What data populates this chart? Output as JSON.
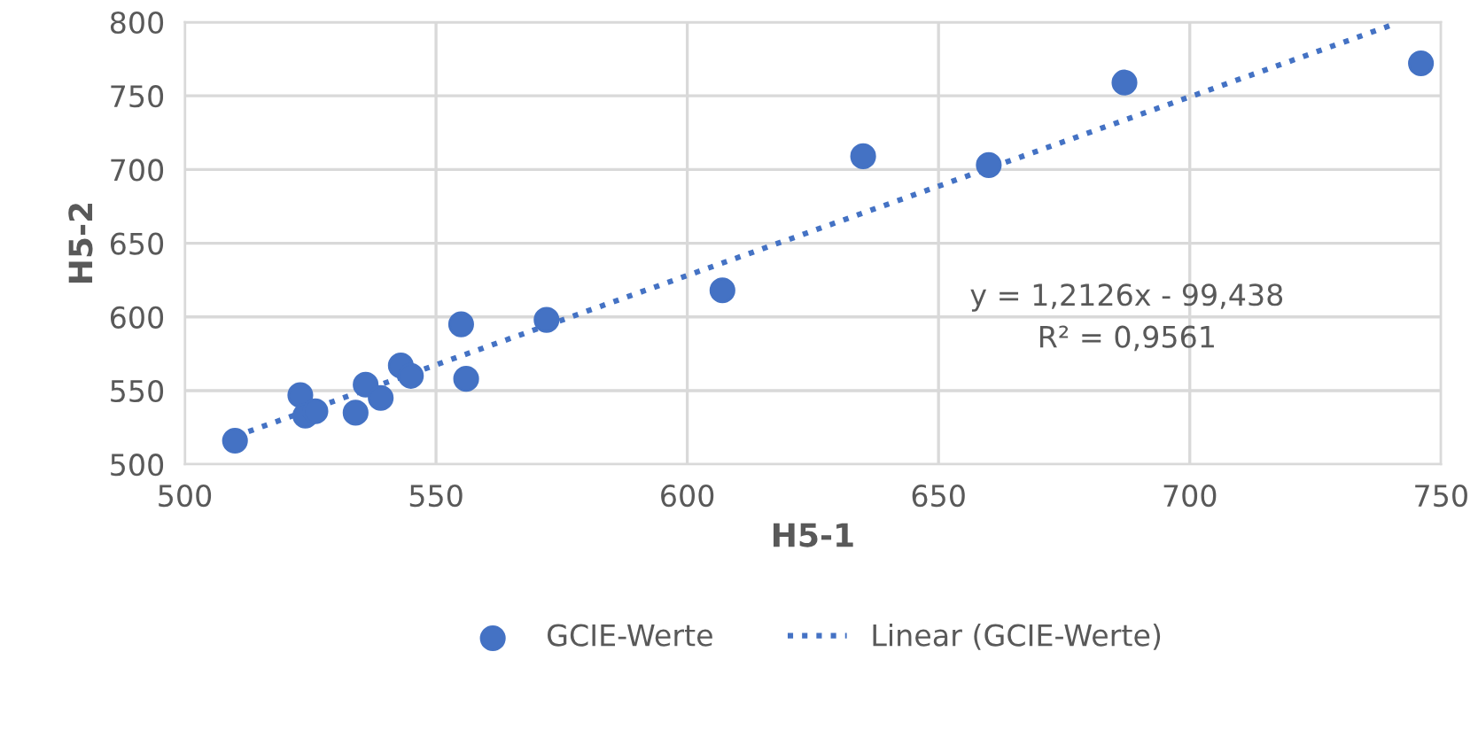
{
  "chart_data": {
    "type": "scatter",
    "xlabel": "H5-1",
    "ylabel": "H5-2",
    "xlim": [
      500,
      750
    ],
    "ylim": [
      500,
      800
    ],
    "xticks": [
      500,
      550,
      600,
      650,
      700,
      750
    ],
    "yticks": [
      500,
      550,
      600,
      650,
      700,
      750,
      800
    ],
    "grid": true,
    "legend": "bottom",
    "series": [
      {
        "name": "GCIE-Werte",
        "color": "#4472c4",
        "marker": "circle",
        "x": [
          510,
          523,
          524,
          526,
          534,
          536,
          539,
          543,
          545,
          555,
          556,
          572,
          607,
          635,
          660,
          687,
          746
        ],
        "values": [
          516,
          547,
          533,
          536,
          535,
          554,
          545,
          567,
          560,
          595,
          558,
          598,
          618,
          709,
          703,
          759,
          772
        ]
      },
      {
        "name": "Linear (GCIE-Werte)",
        "type": "line",
        "color": "#4472c4",
        "line_style": "dotted",
        "marker": "none",
        "x": [
          510,
          741
        ],
        "values": [
          519,
          799
        ]
      }
    ],
    "annotations": [
      "y = 1,2126x - 99,438\nR² = 0,9561"
    ]
  }
}
